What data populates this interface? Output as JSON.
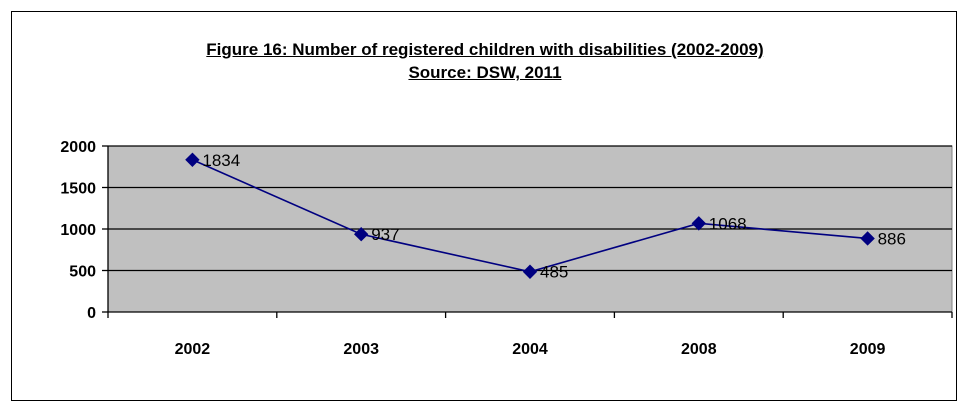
{
  "chart_data": {
    "type": "line",
    "title": "Figure 16: Number of registered children with disabilities (2002-2009)",
    "subtitle": "Source: DSW, 2011",
    "categories": [
      "2002",
      "2003",
      "2004",
      "2008",
      "2009"
    ],
    "series": [
      {
        "values": [
          1834,
          937,
          485,
          1068,
          886
        ]
      }
    ],
    "data_labels": [
      "1834",
      "937",
      "485",
      "1068",
      "886"
    ],
    "y_ticks": [
      "0",
      "500",
      "1000",
      "1500",
      "2000"
    ],
    "y_tick_values": [
      0,
      500,
      1000,
      1500,
      2000
    ],
    "ylim": [
      0,
      2000
    ],
    "xlabel": "",
    "ylabel": "",
    "grid": true,
    "legend": "none",
    "colors": {
      "plot_background": "#c0c0c0",
      "line": "#000080",
      "marker": "#000080",
      "gridline": "#000000"
    },
    "marker": "diamond"
  }
}
